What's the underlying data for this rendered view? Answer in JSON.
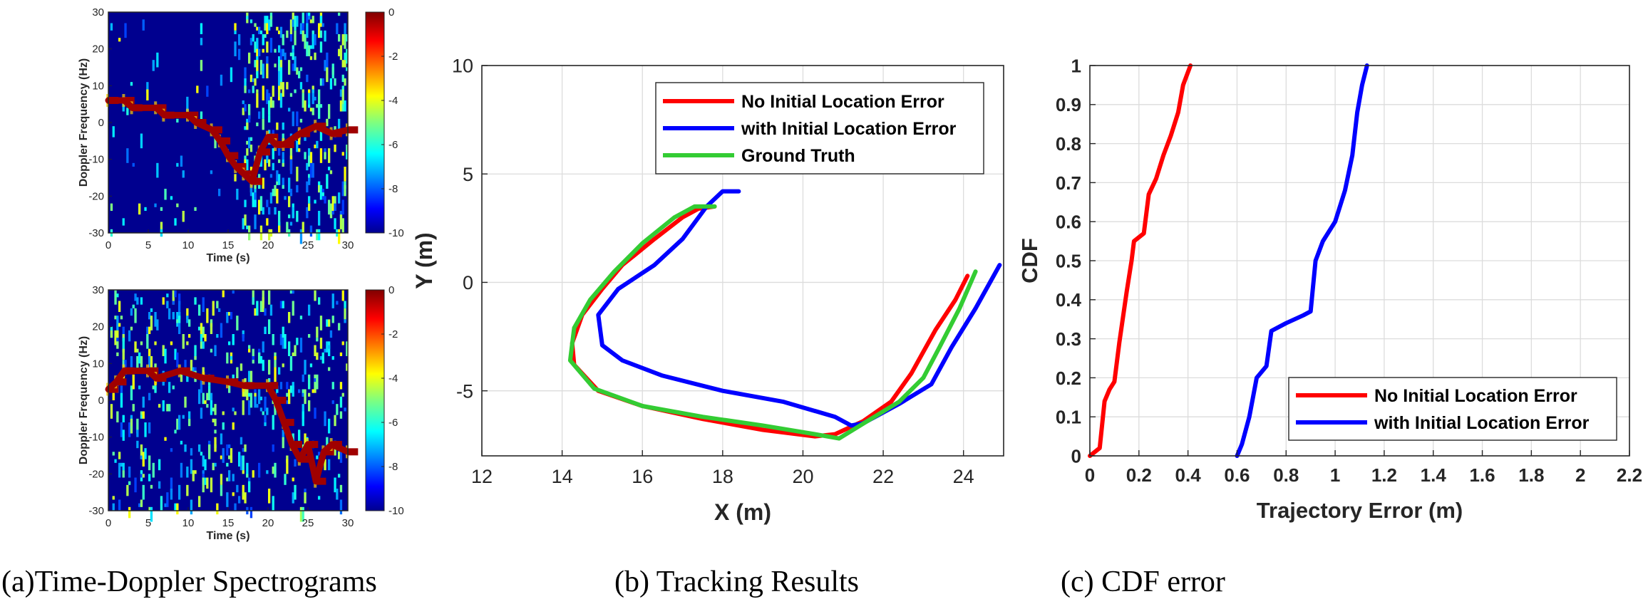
{
  "captions": {
    "a": "(a)Time-Doppler Spectrograms",
    "b": "(b) Tracking Results",
    "c": "(c) CDF error"
  },
  "chart_data": [
    {
      "id": "spectrogram-1",
      "type": "heatmap",
      "xlabel": "Time (s)",
      "ylabel": "Doppler Frequency (Hz)",
      "xlim": [
        0,
        30
      ],
      "ylim": [
        -30,
        30
      ],
      "xticks": [
        0,
        5,
        10,
        15,
        20,
        25,
        30
      ],
      "yticks": [
        -30,
        -20,
        -10,
        0,
        10,
        20,
        30
      ],
      "colorbar": {
        "ticks": [
          0,
          -2,
          -4,
          -6,
          -8,
          -10
        ],
        "clim": [
          -10,
          0
        ],
        "colormap": "jet"
      },
      "dominant_track": [
        {
          "t": 0,
          "f": 6
        },
        {
          "t": 2,
          "f": 6
        },
        {
          "t": 3,
          "f": 4
        },
        {
          "t": 6,
          "f": 4
        },
        {
          "t": 7,
          "f": 2
        },
        {
          "t": 10,
          "f": 2
        },
        {
          "t": 11,
          "f": 0
        },
        {
          "t": 13,
          "f": -2
        },
        {
          "t": 14,
          "f": -5
        },
        {
          "t": 15,
          "f": -9
        },
        {
          "t": 16,
          "f": -12
        },
        {
          "t": 17,
          "f": -14
        },
        {
          "t": 18,
          "f": -16
        },
        {
          "t": 19,
          "f": -8
        },
        {
          "t": 20,
          "f": -4
        },
        {
          "t": 21,
          "f": -6
        },
        {
          "t": 22,
          "f": -6
        },
        {
          "t": 24,
          "f": -3
        },
        {
          "t": 26,
          "f": -1
        },
        {
          "t": 28,
          "f": -3
        },
        {
          "t": 30,
          "f": -2
        }
      ]
    },
    {
      "id": "spectrogram-2",
      "type": "heatmap",
      "xlabel": "Time (s)",
      "ylabel": "Doppler Frequency (Hz)",
      "xlim": [
        0,
        30
      ],
      "ylim": [
        -30,
        30
      ],
      "xticks": [
        0,
        5,
        10,
        15,
        20,
        25,
        30
      ],
      "yticks": [
        -30,
        -20,
        -10,
        0,
        10,
        20,
        30
      ],
      "colorbar": {
        "ticks": [
          0,
          -2,
          -4,
          -6,
          -8,
          -10
        ],
        "clim": [
          -10,
          0
        ],
        "colormap": "jet"
      },
      "dominant_track": [
        {
          "t": 0,
          "f": 3
        },
        {
          "t": 1,
          "f": 5
        },
        {
          "t": 2,
          "f": 8
        },
        {
          "t": 5,
          "f": 8
        },
        {
          "t": 6,
          "f": 6
        },
        {
          "t": 9,
          "f": 8
        },
        {
          "t": 12,
          "f": 6
        },
        {
          "t": 15,
          "f": 5
        },
        {
          "t": 17,
          "f": 4
        },
        {
          "t": 20,
          "f": 4
        },
        {
          "t": 21,
          "f": 0
        },
        {
          "t": 22,
          "f": -6
        },
        {
          "t": 23,
          "f": -12
        },
        {
          "t": 24,
          "f": -16
        },
        {
          "t": 25,
          "f": -12
        },
        {
          "t": 26,
          "f": -22
        },
        {
          "t": 27,
          "f": -14
        },
        {
          "t": 28,
          "f": -12
        },
        {
          "t": 30,
          "f": -14
        }
      ]
    },
    {
      "id": "tracking",
      "type": "line",
      "xlabel": "X (m)",
      "ylabel": "Y (m)",
      "xlim": [
        12,
        25
      ],
      "ylim": [
        -8,
        10
      ],
      "xticks": [
        12,
        14,
        16,
        18,
        20,
        22,
        24
      ],
      "yticks": [
        -5,
        0,
        5,
        10
      ],
      "grid": true,
      "legend_position": "top-right",
      "series": [
        {
          "name": "No Initial Location Error",
          "color": "#ff0000",
          "points": [
            [
              24.1,
              0.3
            ],
            [
              23.8,
              -0.8
            ],
            [
              23.3,
              -2.2
            ],
            [
              22.7,
              -4.2
            ],
            [
              22.2,
              -5.5
            ],
            [
              21.5,
              -6.4
            ],
            [
              20.8,
              -7.0
            ],
            [
              20.3,
              -7.1
            ],
            [
              19.0,
              -6.8
            ],
            [
              17.5,
              -6.3
            ],
            [
              16.0,
              -5.7
            ],
            [
              14.9,
              -5.0
            ],
            [
              14.3,
              -3.8
            ],
            [
              14.25,
              -2.8
            ],
            [
              14.5,
              -1.5
            ],
            [
              15.0,
              -0.3
            ],
            [
              15.5,
              0.8
            ],
            [
              16.3,
              2.0
            ],
            [
              17.0,
              3.0
            ],
            [
              17.4,
              3.4
            ],
            [
              17.8,
              3.5
            ]
          ]
        },
        {
          "name": "with Initial Location Error",
          "color": "#0000ff",
          "points": [
            [
              24.9,
              0.8
            ],
            [
              24.3,
              -1.2
            ],
            [
              23.7,
              -3.0
            ],
            [
              23.2,
              -4.7
            ],
            [
              22.4,
              -5.6
            ],
            [
              21.5,
              -6.5
            ],
            [
              21.2,
              -6.6
            ],
            [
              20.8,
              -6.2
            ],
            [
              19.5,
              -5.5
            ],
            [
              18.0,
              -5.0
            ],
            [
              16.5,
              -4.3
            ],
            [
              15.5,
              -3.6
            ],
            [
              15.0,
              -2.9
            ],
            [
              14.9,
              -1.5
            ],
            [
              15.4,
              -0.3
            ],
            [
              16.3,
              0.8
            ],
            [
              17.0,
              2.0
            ],
            [
              17.6,
              3.5
            ],
            [
              18.0,
              4.2
            ],
            [
              18.4,
              4.2
            ]
          ]
        },
        {
          "name": "Ground Truth",
          "color": "#33cc33",
          "points": [
            [
              24.3,
              0.5
            ],
            [
              23.9,
              -1.2
            ],
            [
              23.4,
              -3.0
            ],
            [
              23.0,
              -4.4
            ],
            [
              22.4,
              -5.5
            ],
            [
              21.6,
              -6.4
            ],
            [
              20.9,
              -7.2
            ],
            [
              20.3,
              -7.0
            ],
            [
              19.0,
              -6.6
            ],
            [
              17.5,
              -6.2
            ],
            [
              16.0,
              -5.7
            ],
            [
              14.8,
              -4.9
            ],
            [
              14.2,
              -3.6
            ],
            [
              14.3,
              -2.1
            ],
            [
              14.7,
              -0.8
            ],
            [
              15.3,
              0.5
            ],
            [
              16.0,
              1.8
            ],
            [
              16.8,
              3.0
            ],
            [
              17.3,
              3.5
            ],
            [
              17.8,
              3.5
            ]
          ]
        }
      ]
    },
    {
      "id": "cdf",
      "type": "line",
      "xlabel": "Trajectory Error (m)",
      "ylabel": "CDF",
      "xlim": [
        0,
        2.2
      ],
      "ylim": [
        0,
        1
      ],
      "xticks": [
        0,
        0.2,
        0.4,
        0.6,
        0.8,
        1,
        1.2,
        1.4,
        1.6,
        1.8,
        2,
        2.2
      ],
      "yticks": [
        0,
        0.1,
        0.2,
        0.3,
        0.4,
        0.5,
        0.6,
        0.7,
        0.8,
        0.9,
        1
      ],
      "grid": true,
      "legend_position": "bottom-right",
      "series": [
        {
          "name": "No Initial Location Error",
          "color": "#ff0000",
          "points": [
            [
              0,
              0
            ],
            [
              0.04,
              0.02
            ],
            [
              0.05,
              0.08
            ],
            [
              0.06,
              0.14
            ],
            [
              0.08,
              0.17
            ],
            [
              0.1,
              0.19
            ],
            [
              0.12,
              0.29
            ],
            [
              0.15,
              0.42
            ],
            [
              0.17,
              0.5
            ],
            [
              0.18,
              0.55
            ],
            [
              0.22,
              0.57
            ],
            [
              0.24,
              0.67
            ],
            [
              0.27,
              0.71
            ],
            [
              0.3,
              0.77
            ],
            [
              0.33,
              0.82
            ],
            [
              0.36,
              0.88
            ],
            [
              0.38,
              0.95
            ],
            [
              0.41,
              1.0
            ]
          ]
        },
        {
          "name": "with Initial Location Error",
          "color": "#0000ff",
          "points": [
            [
              0.6,
              0
            ],
            [
              0.62,
              0.03
            ],
            [
              0.65,
              0.1
            ],
            [
              0.68,
              0.2
            ],
            [
              0.72,
              0.23
            ],
            [
              0.74,
              0.32
            ],
            [
              0.8,
              0.34
            ],
            [
              0.87,
              0.36
            ],
            [
              0.9,
              0.37
            ],
            [
              0.92,
              0.5
            ],
            [
              0.95,
              0.55
            ],
            [
              1.0,
              0.6
            ],
            [
              1.04,
              0.68
            ],
            [
              1.07,
              0.77
            ],
            [
              1.09,
              0.88
            ],
            [
              1.11,
              0.95
            ],
            [
              1.13,
              1.0
            ]
          ]
        }
      ]
    }
  ]
}
